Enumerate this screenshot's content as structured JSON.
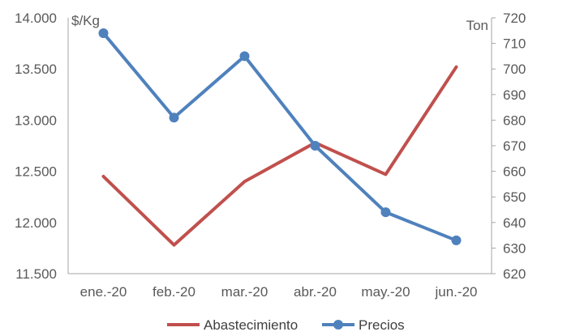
{
  "chart_data": {
    "type": "line",
    "categories": [
      "ene.-20",
      "feb.-20",
      "mar.-20",
      "abr.-20",
      "may.-20",
      "jun.-20"
    ],
    "left_axis": {
      "unit_label": "$/Kg",
      "ylim": [
        11500,
        14000
      ],
      "ticks": [
        "11.500",
        "12.000",
        "12.500",
        "13.000",
        "13.500",
        "14.000"
      ]
    },
    "right_axis": {
      "unit_label": "Ton",
      "ylim": [
        620,
        720
      ],
      "ticks": [
        "620",
        "630",
        "640",
        "650",
        "660",
        "670",
        "680",
        "690",
        "700",
        "710",
        "720"
      ]
    },
    "series": [
      {
        "name": "Abastecimiento",
        "axis": "left",
        "color": "#c0504d",
        "markers": false,
        "values": [
          12450,
          11780,
          12400,
          12780,
          12470,
          13520
        ]
      },
      {
        "name": "Precios",
        "axis": "right",
        "color": "#4f81bd",
        "markers": true,
        "values": [
          714,
          681,
          705,
          670,
          644,
          633
        ]
      }
    ],
    "legend_position": "bottom",
    "grid": false
  }
}
